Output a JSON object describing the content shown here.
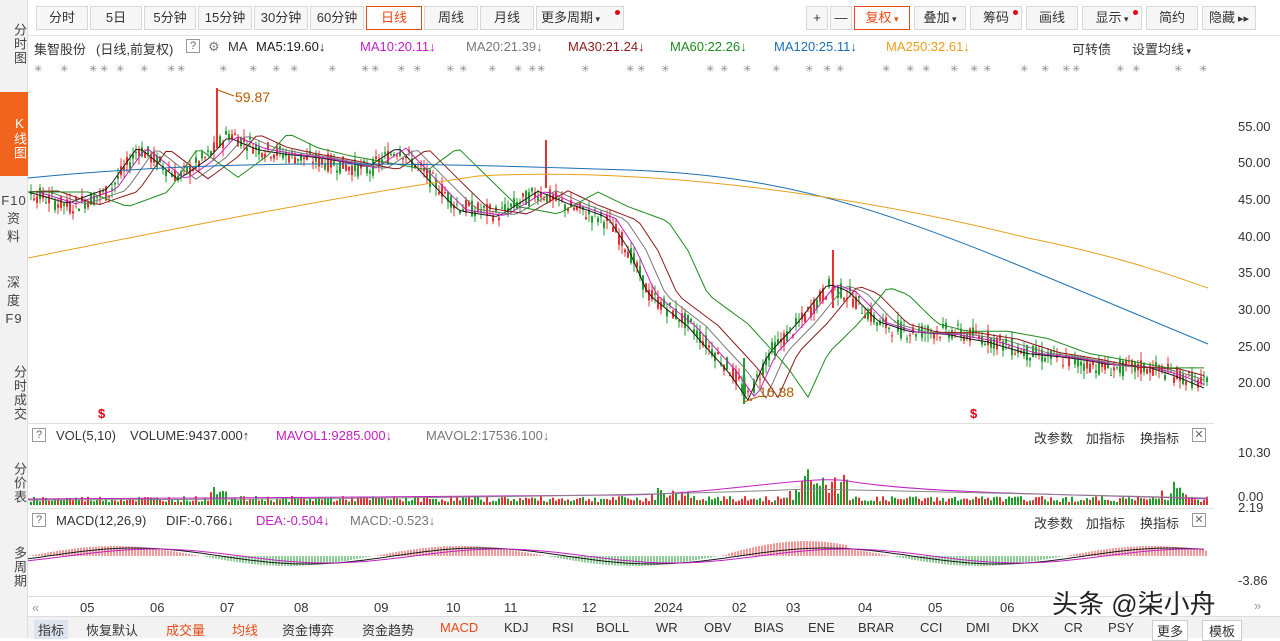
{
  "left_nav": [
    {
      "label": "分时图",
      "active": false
    },
    {
      "label": "K线图",
      "active": true
    },
    {
      "label": "F10资料",
      "active": false
    },
    {
      "label": "深度F9",
      "active": false
    },
    {
      "label": "分时成交",
      "active": false
    },
    {
      "label": "分价表",
      "active": false
    },
    {
      "label": "多周期",
      "active": false
    }
  ],
  "toolbar": {
    "periods": [
      "分时",
      "5日",
      "5分钟",
      "15分钟",
      "30分钟",
      "60分钟",
      "日线",
      "周线",
      "月线",
      "更多周期"
    ],
    "active_period": "日线",
    "zoom_in": "+",
    "zoom_out": "—",
    "fuquan": "复权",
    "overlay": "叠加",
    "chips": "筹码",
    "drawline": "画线",
    "display": "显示",
    "simple": "简约",
    "hide": "隐藏"
  },
  "stock": {
    "name": "集智股份",
    "mode": "(日线,前复权)",
    "help": "?",
    "ma_label": "MA",
    "ma": [
      {
        "label": "MA5:19.60",
        "color": "#1a1a1a"
      },
      {
        "label": "MA10:20.11",
        "color": "#c020c0"
      },
      {
        "label": "MA20:21.39",
        "color": "#777777"
      },
      {
        "label": "MA30:21.24",
        "color": "#8b1a1a"
      },
      {
        "label": "MA60:22.26",
        "color": "#1e8b1e"
      },
      {
        "label": "MA120:25.11",
        "color": "#1a6fb0"
      },
      {
        "label": "MA250:32.61",
        "color": "#e8a01c"
      }
    ],
    "convertible": "可转债",
    "set_ma": "设置均线"
  },
  "price_axis": [
    "55.00",
    "50.00",
    "45.00",
    "40.00",
    "35.00",
    "30.00",
    "25.00",
    "20.00"
  ],
  "annotations": {
    "high": "59.87",
    "low": "16.88"
  },
  "volume_panel": {
    "title": "VOL(5,10)",
    "volume": "VOLUME:9437.000",
    "mavol1": "MAVOL1:9285.000",
    "mavol2": "MAVOL2:17536.100",
    "axis": [
      "10.30",
      "0.00"
    ],
    "btn_params": "改参数",
    "btn_add": "加指标",
    "btn_switch": "换指标"
  },
  "macd_panel": {
    "title": "MACD(12,26,9)",
    "dif": "DIF:-0.766",
    "dea": "DEA:-0.504",
    "macd": "MACD:-0.523",
    "axis": [
      "2.19",
      "-3.86"
    ],
    "btn_params": "改参数",
    "btn_add": "加指标",
    "btn_switch": "换指标"
  },
  "x_axis": [
    "05",
    "06",
    "07",
    "08",
    "09",
    "10",
    "11",
    "12",
    "2024",
    "02",
    "03",
    "04",
    "05",
    "06"
  ],
  "bottom_tabs": [
    "指标",
    "恢复默认",
    "成交量",
    "均线",
    "资金博弈",
    "资金趋势",
    "MACD",
    "KDJ",
    "RSI",
    "BOLL",
    "WR",
    "OBV",
    "BIAS",
    "ENE",
    "BRAR",
    "CCI",
    "DMI",
    "DKX",
    "CR",
    "PSY",
    "更多",
    "模板"
  ],
  "watermark": "头条 @柒小舟",
  "colors": {
    "up": "#e83030",
    "down": "#1f9e2c",
    "accent": "#f0641e"
  }
}
